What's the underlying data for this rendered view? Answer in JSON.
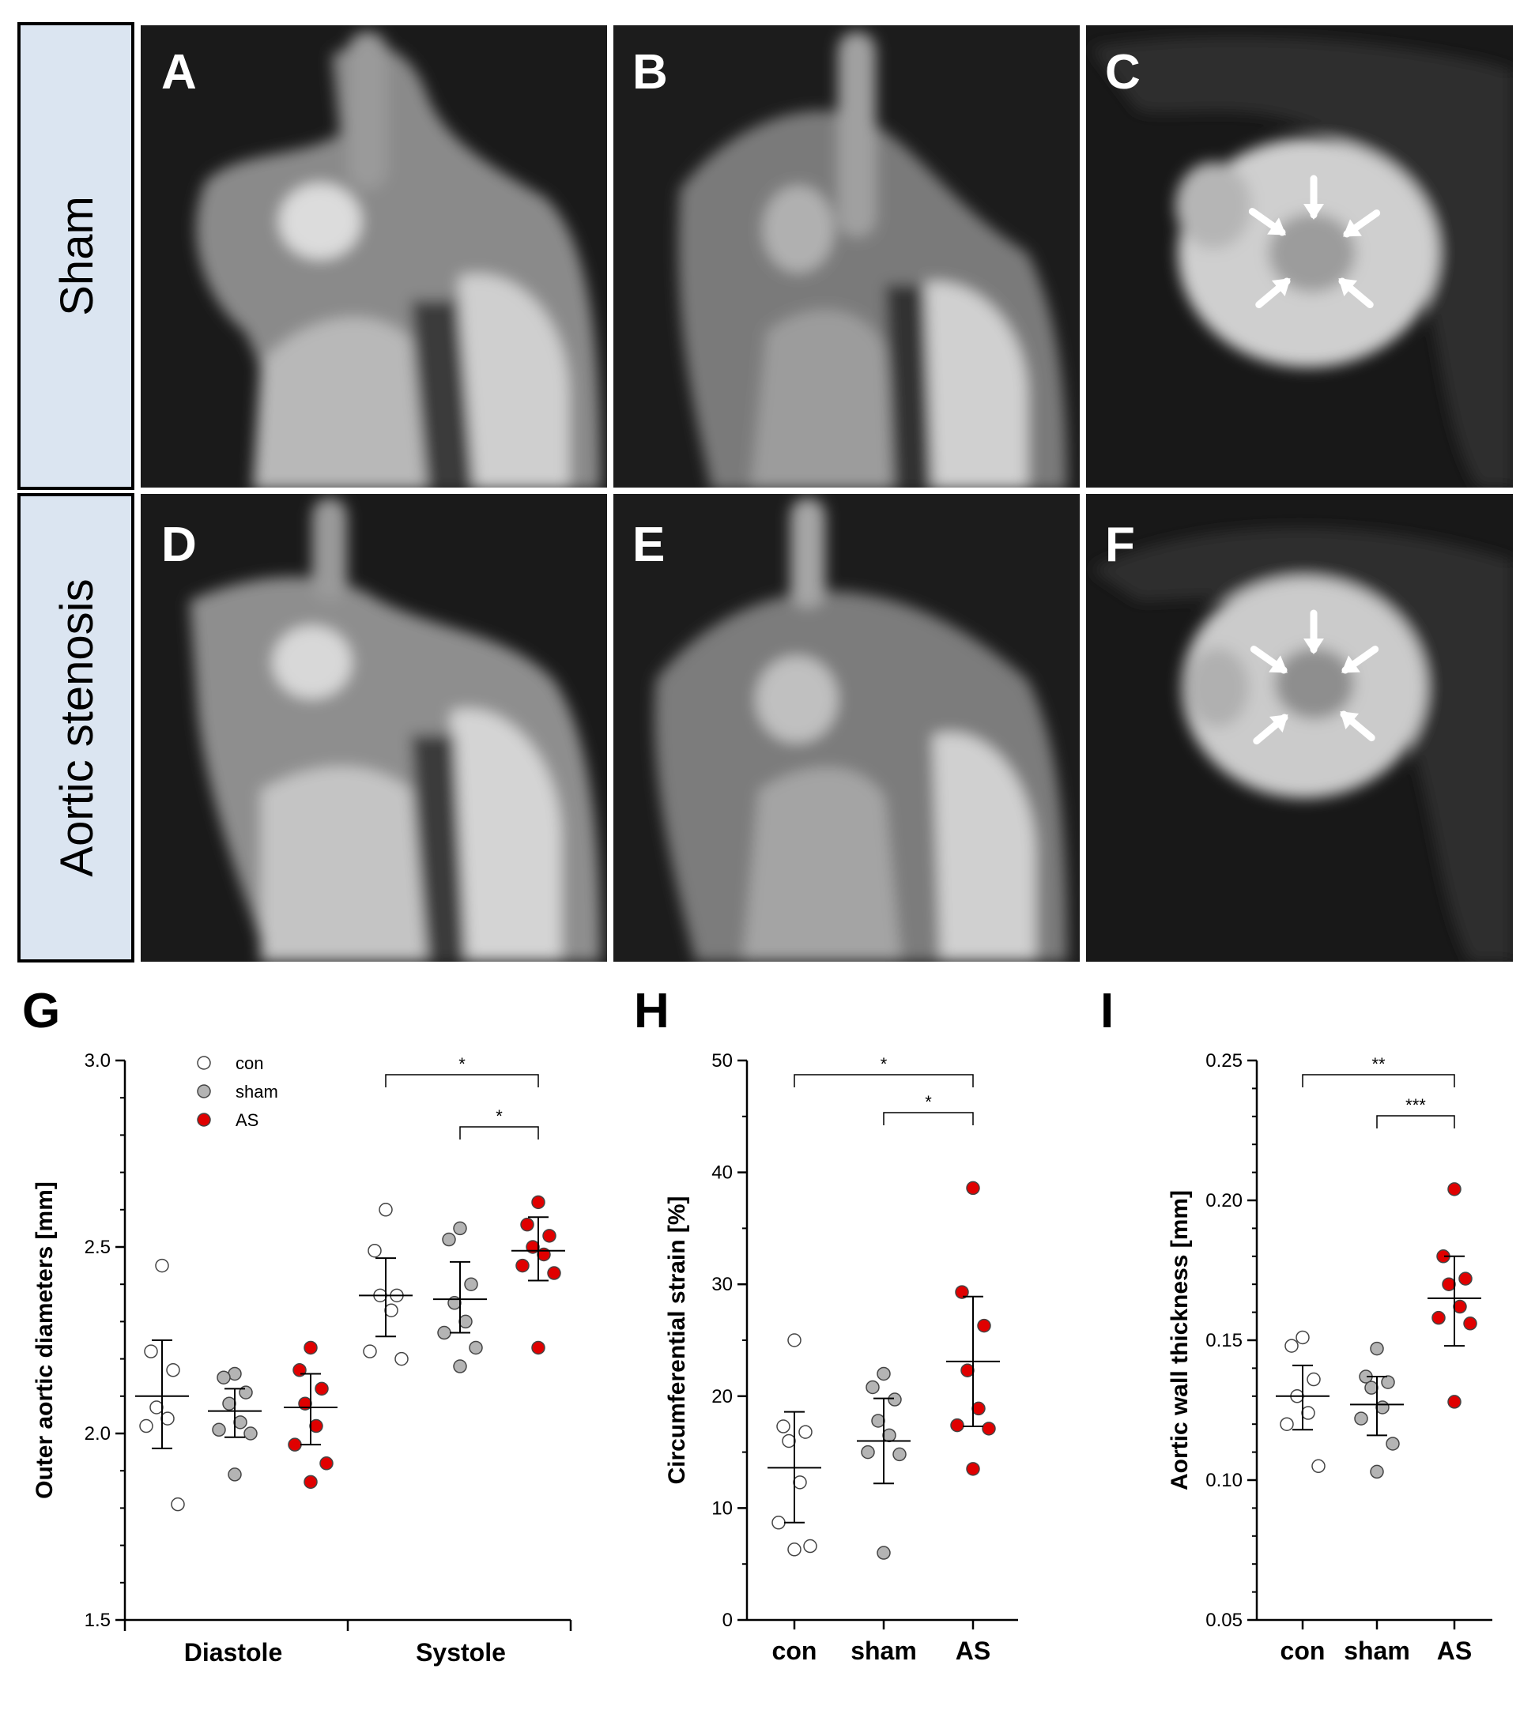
{
  "rows": [
    {
      "label": "Sham",
      "panels": [
        "A",
        "B",
        "C"
      ]
    },
    {
      "label": "Aortic stenosis",
      "panels": [
        "D",
        "E",
        "F"
      ]
    }
  ],
  "colors": {
    "con": "#ffffff",
    "sham": "#b4b4b4",
    "AS": "#e00000",
    "label_box": "#dbe5f1"
  },
  "chart_data": [
    {
      "panel": "G",
      "type": "scatter",
      "title": "",
      "ylabel": "Outer aortic diameters [mm]",
      "xlabel": "",
      "ylim": [
        1.5,
        3.0
      ],
      "yticks": [
        "1.5",
        "2.0",
        "2.5",
        "3.0"
      ],
      "categories": [
        "Diastole",
        "Systole"
      ],
      "legend": {
        "placement": "top-left",
        "entries": [
          "con",
          "sham",
          "AS"
        ]
      },
      "series": [
        {
          "name": "con",
          "groups": [
            {
              "category": "Diastole",
              "values": [
                2.45,
                2.22,
                2.17,
                2.07,
                2.04,
                2.02,
                1.81
              ],
              "mean": 2.1,
              "sd_low": 1.96,
              "sd_high": 2.25
            },
            {
              "category": "Systole",
              "values": [
                2.6,
                2.49,
                2.37,
                2.37,
                2.33,
                2.22,
                2.2
              ],
              "mean": 2.37,
              "sd_low": 2.26,
              "sd_high": 2.47
            }
          ]
        },
        {
          "name": "sham",
          "groups": [
            {
              "category": "Diastole",
              "values": [
                2.16,
                2.15,
                2.11,
                2.08,
                2.03,
                2.01,
                2.0,
                1.89
              ],
              "mean": 2.06,
              "sd_low": 1.99,
              "sd_high": 2.12
            },
            {
              "category": "Systole",
              "values": [
                2.55,
                2.52,
                2.4,
                2.35,
                2.3,
                2.27,
                2.23,
                2.18
              ],
              "mean": 2.36,
              "sd_low": 2.27,
              "sd_high": 2.46
            }
          ]
        },
        {
          "name": "AS",
          "groups": [
            {
              "category": "Diastole",
              "values": [
                2.23,
                2.17,
                2.12,
                2.08,
                2.02,
                1.97,
                1.92,
                1.87
              ],
              "mean": 2.07,
              "sd_low": 1.97,
              "sd_high": 2.16
            },
            {
              "category": "Systole",
              "values": [
                2.62,
                2.56,
                2.53,
                2.5,
                2.48,
                2.45,
                2.43,
                2.23
              ],
              "mean": 2.49,
              "sd_low": 2.41,
              "sd_high": 2.58
            }
          ]
        }
      ],
      "significance": [
        {
          "text": "*",
          "from": [
            "Systole",
            "con"
          ],
          "to": [
            "Systole",
            "AS"
          ]
        },
        {
          "text": "*",
          "from": [
            "Systole",
            "sham"
          ],
          "to": [
            "Systole",
            "AS"
          ]
        }
      ]
    },
    {
      "panel": "H",
      "type": "scatter",
      "title": "",
      "ylabel": "Circumferential strain [%]",
      "xlabel": "",
      "ylim": [
        0,
        50
      ],
      "yticks": [
        "0",
        "10",
        "20",
        "30",
        "40",
        "50"
      ],
      "categories": [
        "con",
        "sham",
        "AS"
      ],
      "series": [
        {
          "name": "con",
          "values": [
            25.0,
            17.3,
            16.8,
            16.0,
            12.3,
            8.7,
            6.6,
            6.3
          ],
          "mean": 13.6,
          "sd_low": 8.7,
          "sd_high": 18.6
        },
        {
          "name": "sham",
          "values": [
            22.0,
            20.8,
            19.7,
            17.8,
            16.5,
            15.0,
            14.8,
            6.0
          ],
          "mean": 16.0,
          "sd_low": 12.2,
          "sd_high": 19.8
        },
        {
          "name": "AS",
          "values": [
            38.6,
            29.3,
            26.3,
            22.3,
            18.9,
            17.4,
            17.1,
            13.5
          ],
          "mean": 23.1,
          "sd_low": 17.3,
          "sd_high": 28.9
        }
      ],
      "significance": [
        {
          "text": "*",
          "from": "con",
          "to": "AS"
        },
        {
          "text": "*",
          "from": "sham",
          "to": "AS"
        }
      ]
    },
    {
      "panel": "I",
      "type": "scatter",
      "title": "",
      "ylabel": "Aortic wall thickness [mm]",
      "xlabel": "",
      "ylim": [
        0.05,
        0.25
      ],
      "yticks": [
        "0.05",
        "0.10",
        "0.15",
        "0.20",
        "0.25"
      ],
      "categories": [
        "con",
        "sham",
        "AS"
      ],
      "series": [
        {
          "name": "con",
          "values": [
            0.151,
            0.148,
            0.136,
            0.13,
            0.124,
            0.12,
            0.105
          ],
          "mean": 0.13,
          "sd_low": 0.118,
          "sd_high": 0.141
        },
        {
          "name": "sham",
          "values": [
            0.147,
            0.137,
            0.135,
            0.133,
            0.126,
            0.122,
            0.113,
            0.103
          ],
          "mean": 0.127,
          "sd_low": 0.116,
          "sd_high": 0.137
        },
        {
          "name": "AS",
          "values": [
            0.204,
            0.18,
            0.172,
            0.17,
            0.162,
            0.158,
            0.156,
            0.128
          ],
          "mean": 0.165,
          "sd_low": 0.148,
          "sd_high": 0.18
        }
      ],
      "significance": [
        {
          "text": "**",
          "from": "con",
          "to": "AS"
        },
        {
          "text": "***",
          "from": "sham",
          "to": "AS"
        }
      ]
    }
  ]
}
